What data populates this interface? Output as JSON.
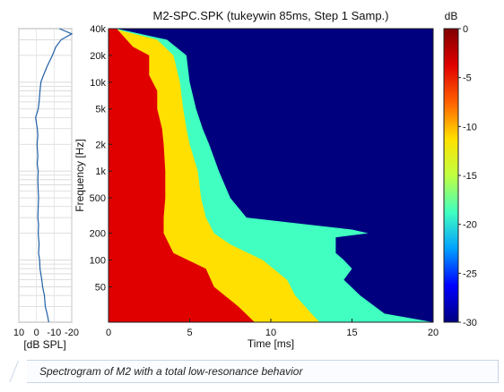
{
  "caption": "Spectrogram of M2 with a total low-resonance behavior",
  "chart_data": [
    {
      "type": "heatmap",
      "title": "M2-SPC.SPK (tukeywin 85ms, Step 1 Samp.)",
      "xlabel": "Time [ms]",
      "ylabel": "Frequency [Hz]",
      "xlim": [
        0,
        20
      ],
      "ylim": [
        20,
        40000
      ],
      "yscale": "log",
      "x_ticks": [
        {
          "value": 0,
          "label": "0"
        },
        {
          "value": 5,
          "label": "5"
        },
        {
          "value": 10,
          "label": "10"
        },
        {
          "value": 15,
          "label": "15"
        },
        {
          "value": 20,
          "label": "20"
        }
      ],
      "y_ticks": [
        {
          "value": 40000,
          "label": "40k"
        },
        {
          "value": 20000,
          "label": "20k"
        },
        {
          "value": 10000,
          "label": "10k"
        },
        {
          "value": 5000,
          "label": "5k"
        },
        {
          "value": 2000,
          "label": "2k"
        },
        {
          "value": 1000,
          "label": "1k"
        },
        {
          "value": 500,
          "label": "500"
        },
        {
          "value": 200,
          "label": "200"
        },
        {
          "value": 100,
          "label": "100"
        },
        {
          "value": 50,
          "label": "50"
        }
      ],
      "colorbar": {
        "label": "dB",
        "range": [
          -30,
          0
        ],
        "ticks": [
          {
            "value": 0,
            "label": "0"
          },
          {
            "value": -5,
            "label": "-5"
          },
          {
            "value": -10,
            "label": "-10"
          },
          {
            "value": -15,
            "label": "-15"
          },
          {
            "value": -20,
            "label": "-20"
          },
          {
            "value": -25,
            "label": "-25"
          },
          {
            "value": -30,
            "label": "-30"
          }
        ],
        "colors": [
          "#00007f",
          "#0000ff",
          "#00a0ff",
          "#40ffc0",
          "#c0ff40",
          "#ffe000",
          "#ff6000",
          "#e00000",
          "#800000"
        ]
      },
      "decay_contours": [
        {
          "level_db": -3,
          "points": [
            [
              40000,
              0.5
            ],
            [
              25000,
              1.5
            ],
            [
              20000,
              2.5
            ],
            [
              12000,
              2.5
            ],
            [
              8000,
              3.0
            ],
            [
              5000,
              3.0
            ],
            [
              3000,
              3.3
            ],
            [
              2000,
              3.4
            ],
            [
              1000,
              3.5
            ],
            [
              500,
              3.5
            ],
            [
              300,
              3.4
            ],
            [
              200,
              3.4
            ],
            [
              120,
              4.0
            ],
            [
              80,
              6.0
            ],
            [
              50,
              6.5
            ],
            [
              30,
              8.0
            ],
            [
              20,
              9.0
            ]
          ]
        },
        {
          "level_db": -10,
          "points": [
            [
              40000,
              0.3
            ],
            [
              30000,
              3.0
            ],
            [
              20000,
              4.0
            ],
            [
              10000,
              4.4
            ],
            [
              5000,
              4.6
            ],
            [
              3000,
              4.8
            ],
            [
              2000,
              5.0
            ],
            [
              1000,
              5.5
            ],
            [
              500,
              5.7
            ],
            [
              300,
              6.0
            ],
            [
              200,
              6.5
            ],
            [
              150,
              7.5
            ],
            [
              100,
              9.5
            ],
            [
              60,
              11.0
            ],
            [
              40,
              11.5
            ],
            [
              25,
              12.5
            ],
            [
              20,
              13.0
            ]
          ]
        },
        {
          "level_db": -20,
          "points": [
            [
              40000,
              0.5
            ],
            [
              30000,
              3.6
            ],
            [
              20000,
              4.8
            ],
            [
              10000,
              5.0
            ],
            [
              5000,
              5.4
            ],
            [
              3000,
              5.8
            ],
            [
              2000,
              6.2
            ],
            [
              1000,
              6.8
            ],
            [
              500,
              7.5
            ],
            [
              300,
              8.5
            ],
            [
              220,
              15.0
            ],
            [
              200,
              16.0
            ],
            [
              180,
              14.0
            ],
            [
              120,
              14.0
            ],
            [
              100,
              14.5
            ],
            [
              80,
              15.0
            ],
            [
              60,
              14.5
            ],
            [
              40,
              15.5
            ],
            [
              25,
              17.0
            ],
            [
              20,
              20.0
            ]
          ]
        }
      ]
    },
    {
      "type": "line",
      "xlabel": "[dB SPL]",
      "ylim": [
        20,
        40000
      ],
      "yscale": "log",
      "xlim": [
        10,
        -20
      ],
      "x_ticks": [
        {
          "value": 10,
          "label": "10"
        },
        {
          "value": 0,
          "label": "0"
        },
        {
          "value": -10,
          "label": "-10"
        },
        {
          "value": -20,
          "label": "-20"
        }
      ],
      "series": [
        {
          "freq": [
            40000,
            35000,
            30000,
            25000,
            20000,
            15000,
            12000,
            10000,
            8000,
            6000,
            5000,
            4000,
            3000,
            2500,
            2000,
            1500,
            1200,
            1000,
            800,
            600,
            500,
            400,
            300,
            250,
            200,
            150,
            120,
            100,
            80,
            60,
            50,
            40,
            30,
            25,
            20
          ],
          "db": [
            -13,
            -20,
            -14,
            -11,
            -9,
            -6,
            -4,
            -2.5,
            -2,
            -1.5,
            -1,
            0.5,
            -0.5,
            -0.8,
            -0.3,
            -0.8,
            -0.4,
            -1,
            -0.8,
            -1,
            -1.2,
            -1,
            -0.8,
            -1.2,
            -1,
            -1.5,
            -1.2,
            -1.8,
            -2,
            -3,
            -3.5,
            -4.5,
            -5,
            -6,
            -7
          ]
        }
      ]
    }
  ]
}
